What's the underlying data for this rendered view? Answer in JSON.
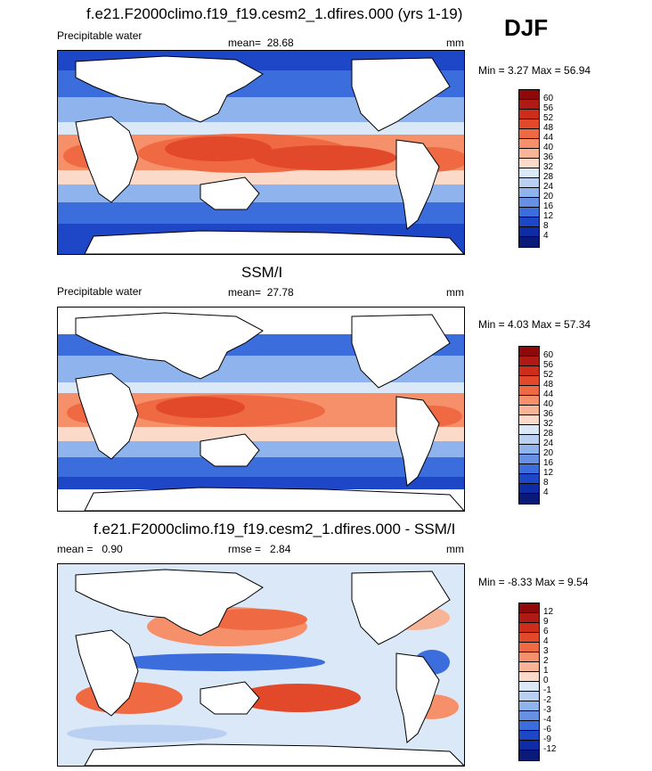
{
  "season": "DJF",
  "panels": [
    {
      "title": "f.e21.F2000climo.f19_f19.cesm2_1.dfires.000 (yrs 1-19)",
      "left_label": "Precipitable water",
      "mean_label": "mean=",
      "mean_value": "28.68",
      "units": "mm",
      "minmax": "Min =   3.27 Max =  56.94"
    },
    {
      "title": "SSM/I",
      "left_label": "Precipitable water",
      "mean_label": "mean=",
      "mean_value": "27.78",
      "units": "mm",
      "minmax": "Min =   4.03 Max =  57.34"
    },
    {
      "title": "f.e21.F2000climo.f19_f19.cesm2_1.dfires.000 - SSM/I",
      "left_label": "mean =",
      "left_value": "0.90",
      "mean_label": "rmse =",
      "mean_value": "2.84",
      "units": "mm",
      "minmax": "Min =  -8.33 Max =   9.54"
    }
  ],
  "colorbars": {
    "absolute": {
      "labels": [
        "60",
        "56",
        "52",
        "48",
        "44",
        "40",
        "36",
        "32",
        "28",
        "24",
        "20",
        "16",
        "12",
        "8",
        "4"
      ],
      "colors": [
        "#8e0a0a",
        "#b01a14",
        "#cf2d1c",
        "#e2492a",
        "#ef6a43",
        "#f5906a",
        "#f8b496",
        "#fbdac9",
        "#dbe8f8",
        "#b9d0f2",
        "#8fb3ec",
        "#6590e4",
        "#3c6ddc",
        "#1e47c8",
        "#0d2ca6",
        "#0a1a78"
      ]
    },
    "difference": {
      "labels": [
        "12",
        "9",
        "6",
        "4",
        "3",
        "2",
        "1",
        "0",
        "-1",
        "-2",
        "-3",
        "-4",
        "-6",
        "-9",
        "-12"
      ],
      "colors": [
        "#8e0a0a",
        "#b01a14",
        "#cf2d1c",
        "#e2492a",
        "#ef6a43",
        "#f5906a",
        "#f8b496",
        "#fbdac9",
        "#dbe8f8",
        "#b9d0f2",
        "#8fb3ec",
        "#6590e4",
        "#3c6ddc",
        "#1e47c8",
        "#0d2ca6",
        "#0a1a78"
      ]
    }
  }
}
